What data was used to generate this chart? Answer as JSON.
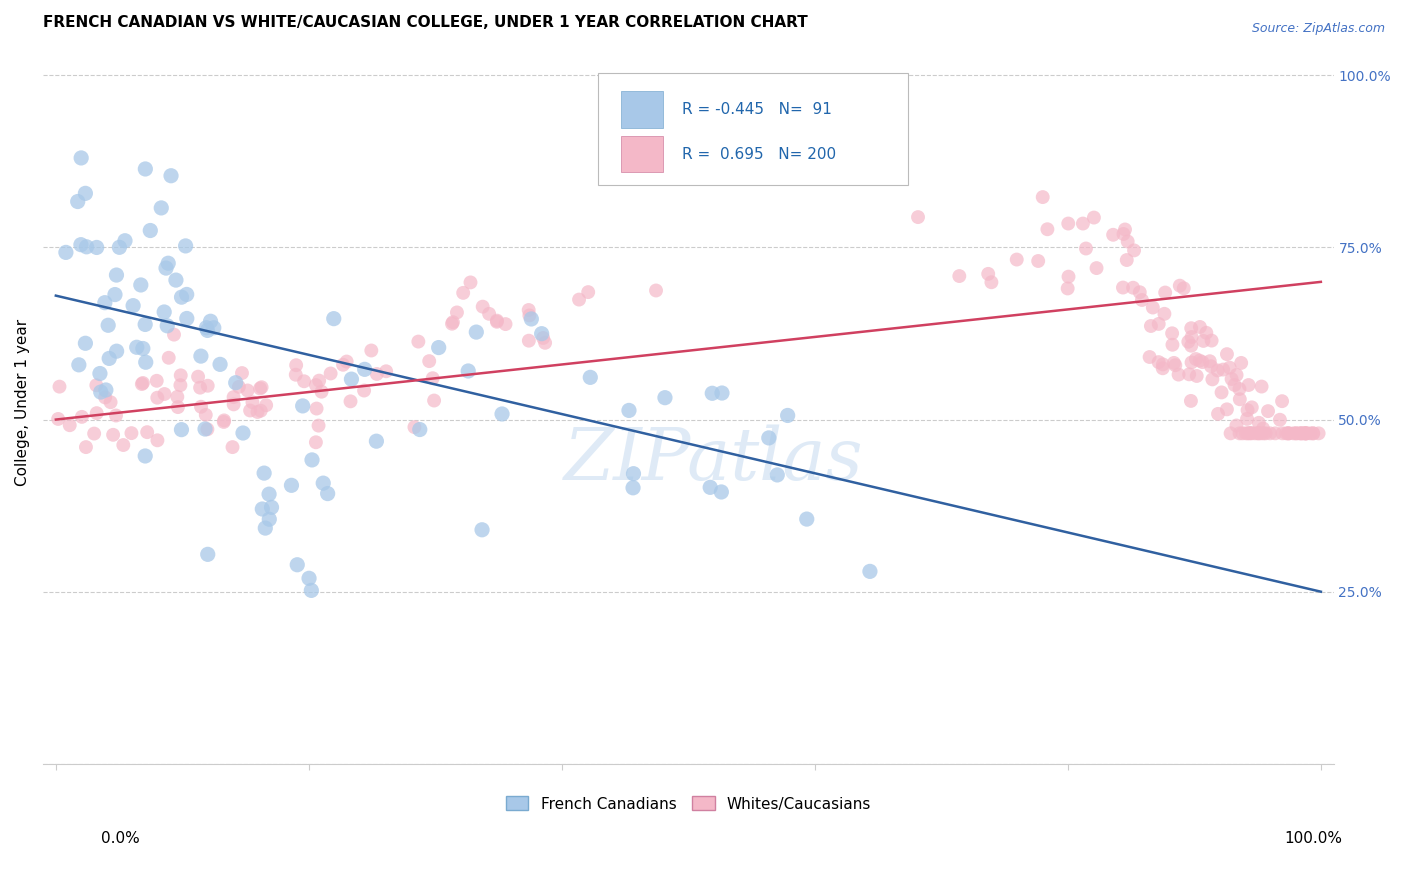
{
  "title": "FRENCH CANADIAN VS WHITE/CAUCASIAN COLLEGE, UNDER 1 YEAR CORRELATION CHART",
  "source": "Source: ZipAtlas.com",
  "ylabel": "College, Under 1 year",
  "legend_label1": "French Canadians",
  "legend_label2": "Whites/Caucasians",
  "r1": -0.445,
  "n1": 91,
  "r2": 0.695,
  "n2": 200,
  "color_blue": "#a8c8e8",
  "color_pink": "#f4b8c8",
  "color_blue_line": "#3060a0",
  "color_pink_line": "#d04060",
  "watermark": "ZIPatlas",
  "ymin": 0.0,
  "ymax": 1.0,
  "xmin": 0.0,
  "xmax": 1.0,
  "blue_trend_x0": 0.0,
  "blue_trend_y0": 0.68,
  "blue_trend_x1": 1.0,
  "blue_trend_y1": 0.25,
  "pink_trend_x0": 0.0,
  "pink_trend_y0": 0.5,
  "pink_trend_x1": 1.0,
  "pink_trend_y1": 0.7,
  "grid_color": "#cccccc",
  "right_tick_color": "#4472c4",
  "ytick_positions": [
    0.0,
    0.25,
    0.5,
    0.75,
    1.0
  ],
  "ytick_labels": [
    "",
    "25.0%",
    "50.0%",
    "75.0%",
    "100.0%"
  ]
}
